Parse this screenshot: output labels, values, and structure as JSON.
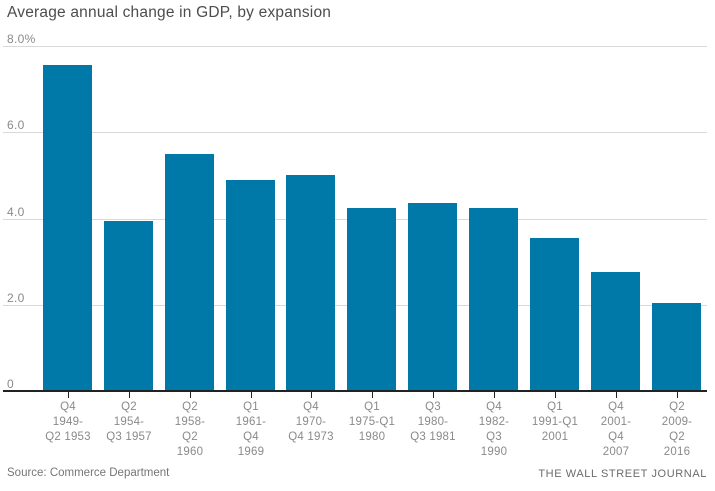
{
  "title": "Average annual change in GDP, by expansion",
  "footer": {
    "source": "Source: Commerce Department",
    "credit": "THE WALL STREET JOURNAL"
  },
  "colors": {
    "bar": "#0079a8",
    "grid": "#d9d9d9",
    "axis": "#222222",
    "title_text": "#4d4d4d",
    "tick_text": "#8a8a8a",
    "footer_text": "#767676"
  },
  "chart_data": {
    "type": "bar",
    "title": "Average annual change in GDP, by expansion",
    "categories": [
      "Q4 1949-Q2 1953",
      "Q2 1954-Q3 1957",
      "Q2 1958-Q2 1960",
      "Q1 1961-Q4 1969",
      "Q4 1970-Q4 1973",
      "Q1 1975-Q1 1980",
      "Q3 1980-Q3 1981",
      "Q4 1982-Q3 1990",
      "Q1 1991-Q1 2001",
      "Q4 2001-Q4 2007",
      "Q2 2009-Q2 2016"
    ],
    "category_lines": [
      [
        "Q4",
        "1949-",
        "Q2 1953"
      ],
      [
        "Q2",
        "1954-",
        "Q3 1957"
      ],
      [
        "Q2",
        "1958-",
        "Q2",
        "1960"
      ],
      [
        "Q1",
        "1961-",
        "Q4",
        "1969"
      ],
      [
        "Q4",
        "1970-",
        "Q4 1973"
      ],
      [
        "Q1",
        "1975-Q1",
        "1980"
      ],
      [
        "Q3",
        "1980-",
        "Q3 1981"
      ],
      [
        "Q4",
        "1982-",
        "Q3",
        "1990"
      ],
      [
        "Q1",
        "1991-Q1",
        "2001"
      ],
      [
        "Q4",
        "2001-",
        "Q4",
        "2007"
      ],
      [
        "Q2",
        "2009-",
        "Q2",
        "2016"
      ]
    ],
    "values": [
      7.55,
      3.95,
      5.5,
      4.9,
      5.0,
      4.25,
      4.35,
      4.25,
      3.55,
      2.75,
      2.05
    ],
    "unit": "%",
    "xlabel": "",
    "ylabel": "",
    "ylim": [
      0,
      8
    ],
    "yticks": [
      {
        "value": 8,
        "label": "8.0%"
      },
      {
        "value": 6,
        "label": "6.0"
      },
      {
        "value": 4,
        "label": "4.0"
      },
      {
        "value": 2,
        "label": "2.0"
      },
      {
        "value": 0,
        "label": "0"
      }
    ],
    "grid": true,
    "legend_position": "none"
  }
}
